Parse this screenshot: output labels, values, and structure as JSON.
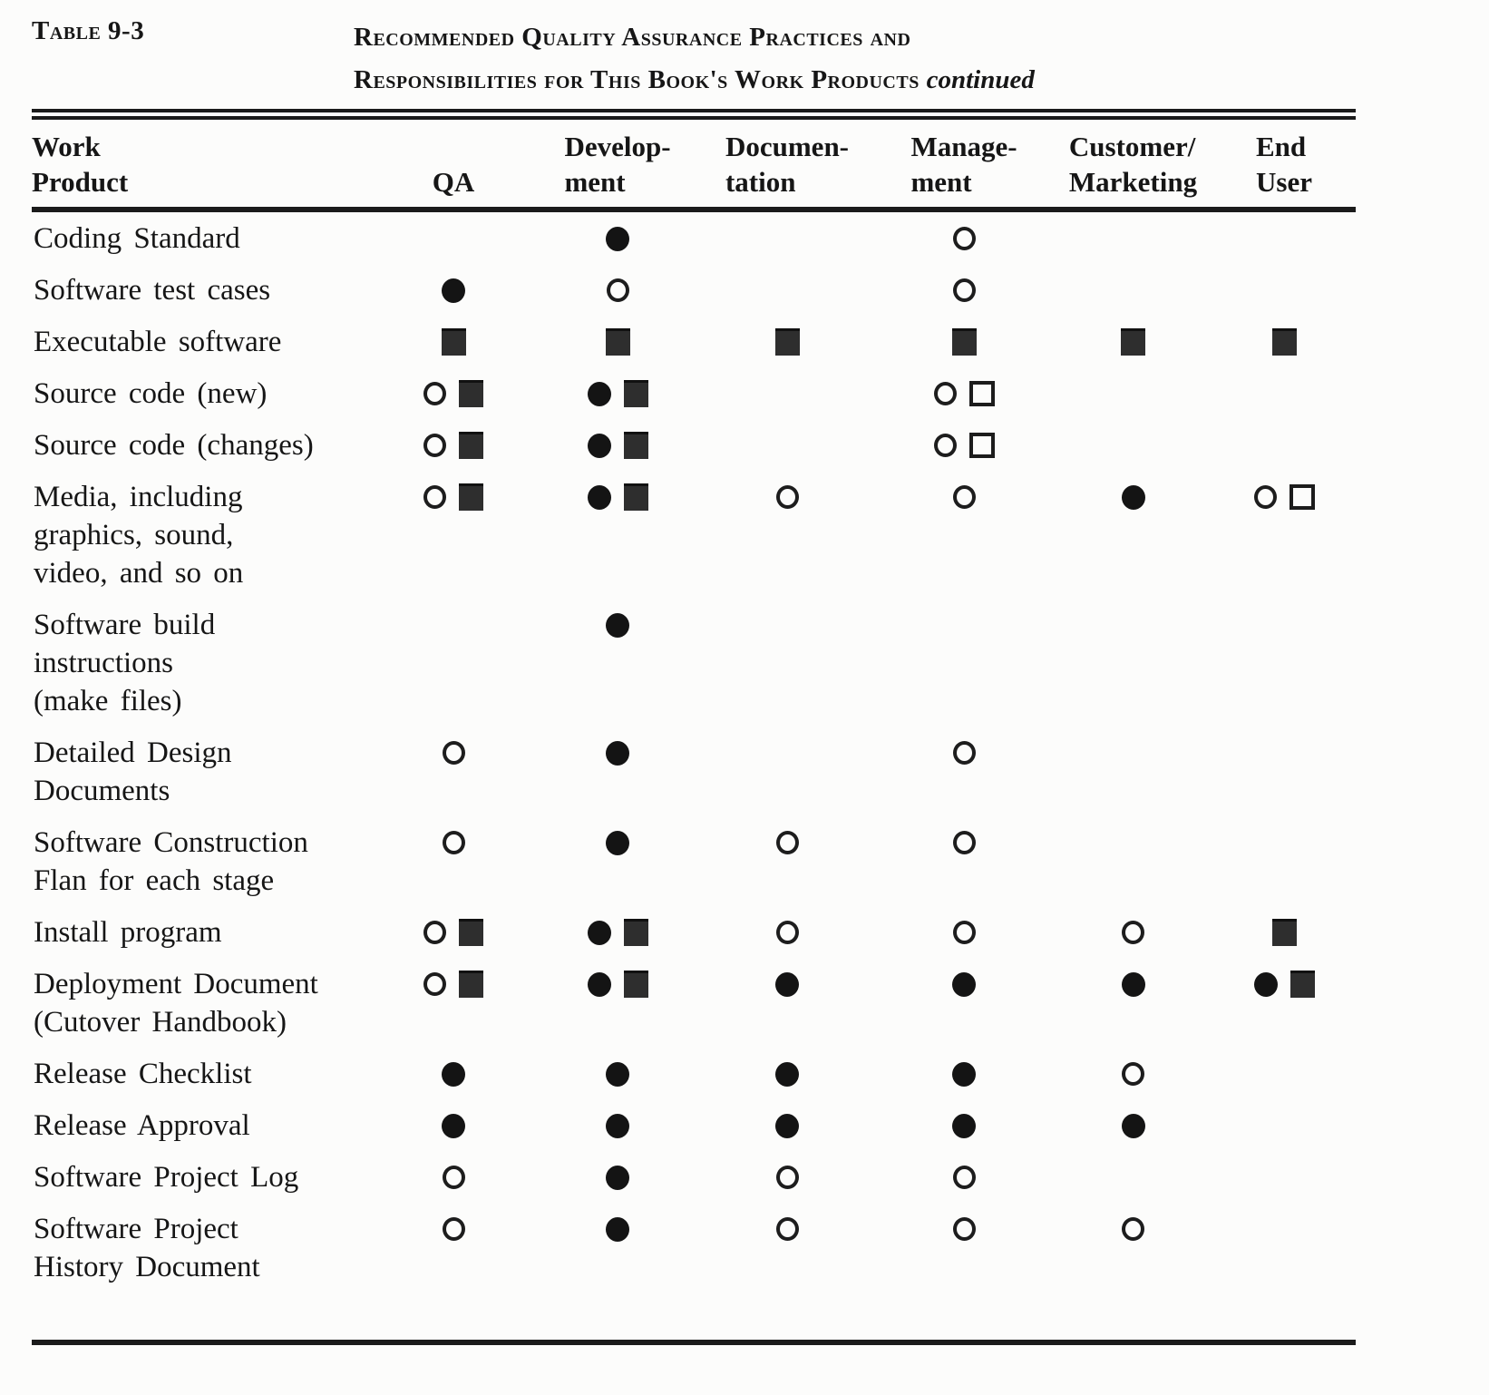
{
  "caption": {
    "table_label": "Table 9-3",
    "title_line1": "Recommended Quality Assurance Practices and",
    "title_line2": "Responsibilities for This Book's Work Products",
    "title_continued": "continued"
  },
  "symbol_legend": {
    "fc": "filled-circle",
    "oc": "open-circle",
    "fs": "filled-square",
    "os": "open-square"
  },
  "table": {
    "header": [
      {
        "lines": [
          "Work",
          "Product"
        ]
      },
      {
        "lines": [
          "",
          "QA"
        ]
      },
      {
        "lines": [
          "Develop-",
          "ment"
        ]
      },
      {
        "lines": [
          "Documen-",
          "tation"
        ]
      },
      {
        "lines": [
          "Manage-",
          "ment"
        ]
      },
      {
        "lines": [
          "Customer/",
          "Marketing"
        ]
      },
      {
        "lines": [
          "End",
          "User"
        ]
      }
    ],
    "rows": [
      {
        "label_lines": [
          "Coding Standard"
        ],
        "cells": [
          [],
          [
            "fc"
          ],
          [],
          [
            "oc"
          ],
          [],
          []
        ]
      },
      {
        "label_lines": [
          "Software test cases"
        ],
        "cells": [
          [
            "fc"
          ],
          [
            "oc"
          ],
          [],
          [
            "oc"
          ],
          [],
          []
        ]
      },
      {
        "label_lines": [
          "Executable software"
        ],
        "cells": [
          [
            "fs"
          ],
          [
            "fs"
          ],
          [
            "fs"
          ],
          [
            "fs"
          ],
          [
            "fs"
          ],
          [
            "fs"
          ]
        ]
      },
      {
        "label_lines": [
          "Source code (new)"
        ],
        "cells": [
          [
            "oc",
            "fs"
          ],
          [
            "fc",
            "fs"
          ],
          [],
          [
            "oc",
            "os"
          ],
          [],
          []
        ]
      },
      {
        "label_lines": [
          "Source code (changes)"
        ],
        "cells": [
          [
            "oc",
            "fs"
          ],
          [
            "fc",
            "fs"
          ],
          [],
          [
            "oc",
            "os"
          ],
          [],
          []
        ]
      },
      {
        "label_lines": [
          "Media, including",
          "graphics, sound,",
          "video, and so on"
        ],
        "cells": [
          [
            "oc",
            "fs"
          ],
          [
            "fc",
            "fs"
          ],
          [
            "oc"
          ],
          [
            "oc"
          ],
          [
            "fc"
          ],
          [
            "oc",
            "os"
          ]
        ]
      },
      {
        "label_lines": [
          "Software build",
          "instructions",
          "(make files)"
        ],
        "cells": [
          [],
          [
            "fc"
          ],
          [],
          [],
          [],
          []
        ]
      },
      {
        "label_lines": [
          "Detailed Design",
          "Documents"
        ],
        "cells": [
          [
            "oc"
          ],
          [
            "fc"
          ],
          [],
          [
            "oc"
          ],
          [],
          []
        ]
      },
      {
        "label_lines": [
          "Software Construction",
          "Flan for each stage"
        ],
        "cells": [
          [
            "oc"
          ],
          [
            "fc"
          ],
          [
            "oc"
          ],
          [
            "oc"
          ],
          [],
          []
        ]
      },
      {
        "label_lines": [
          "Install program"
        ],
        "cells": [
          [
            "oc",
            "fs"
          ],
          [
            "fc",
            "fs"
          ],
          [
            "oc"
          ],
          [
            "oc"
          ],
          [
            "oc"
          ],
          [
            "fs"
          ]
        ]
      },
      {
        "label_lines": [
          "Deployment Document",
          "(Cutover Handbook)"
        ],
        "cells": [
          [
            "oc",
            "fs"
          ],
          [
            "fc",
            "fs"
          ],
          [
            "fc"
          ],
          [
            "fc"
          ],
          [
            "fc"
          ],
          [
            "fc",
            "fs"
          ]
        ]
      },
      {
        "label_lines": [
          "Release Checklist"
        ],
        "cells": [
          [
            "fc"
          ],
          [
            "fc"
          ],
          [
            "fc"
          ],
          [
            "fc"
          ],
          [
            "oc"
          ],
          []
        ]
      },
      {
        "label_lines": [
          "Release Approval"
        ],
        "cells": [
          [
            "fc"
          ],
          [
            "fc"
          ],
          [
            "fc"
          ],
          [
            "fc"
          ],
          [
            "fc"
          ],
          []
        ]
      },
      {
        "label_lines": [
          "Software Project Log"
        ],
        "cells": [
          [
            "oc"
          ],
          [
            "fc"
          ],
          [
            "oc"
          ],
          [
            "oc"
          ],
          [],
          []
        ]
      },
      {
        "label_lines": [
          "Software Project",
          "History Document"
        ],
        "cells": [
          [
            "oc"
          ],
          [
            "fc"
          ],
          [
            "oc"
          ],
          [
            "oc"
          ],
          [
            "oc"
          ],
          []
        ]
      }
    ]
  }
}
